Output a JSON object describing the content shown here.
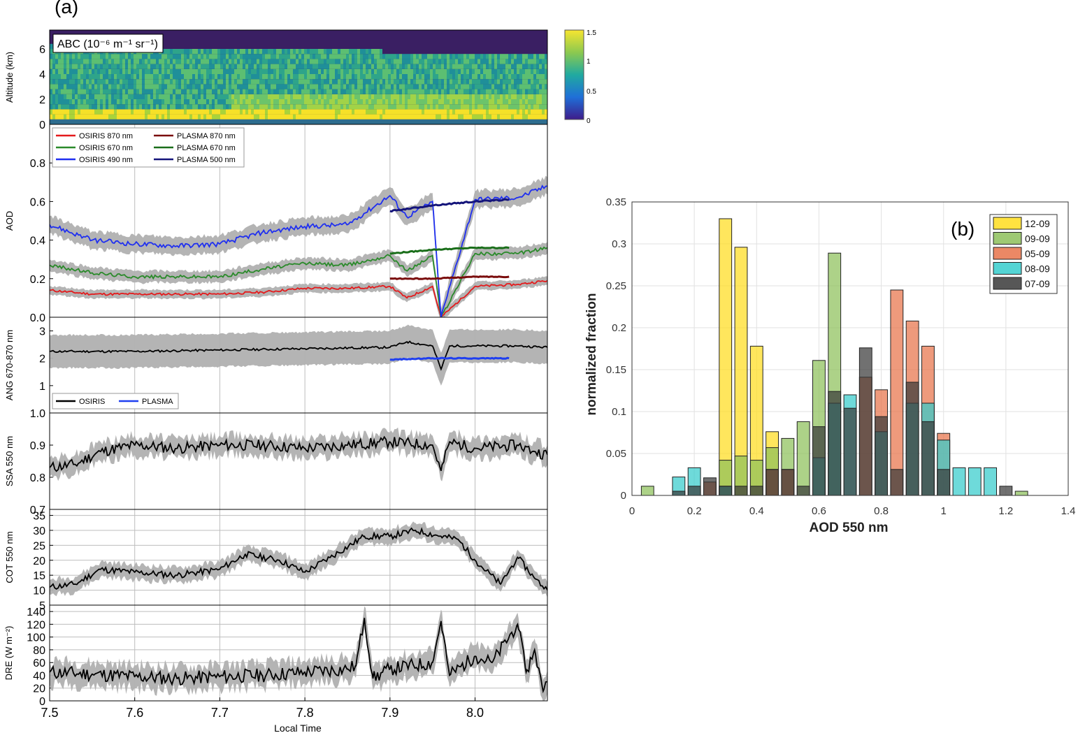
{
  "figure": {
    "panel_a_label": "(a)",
    "panel_b_label": "(b)",
    "colors": {
      "osiris_870": "#e41a1c",
      "osiris_670": "#2a8a2a",
      "osiris_490": "#1f2ff0",
      "plasma_870": "#7a0c0c",
      "plasma_670": "#1a6e1a",
      "plasma_500": "#14147a",
      "uncertainty": "#b0b0b0",
      "black_line": "#000000",
      "plasma_ang": "#1f3ff0"
    }
  },
  "chart_data": [
    {
      "id": "abc",
      "type": "heatmap",
      "ylabel": "Altitude (km)",
      "annotation": "ABC (10⁻⁶ m⁻¹ sr⁻¹)",
      "ylim": [
        0,
        7.5
      ],
      "yticks": [
        "0",
        "2",
        "4",
        "6"
      ],
      "xlim": [
        7.5,
        8.085
      ],
      "colorbar": {
        "min": 0,
        "max": 1.5,
        "ticks": [
          "1.5",
          "1",
          "0.5",
          "0"
        ]
      }
    },
    {
      "id": "aod",
      "type": "line",
      "ylabel": "AOD",
      "ylim": [
        0,
        1.0
      ],
      "yticks": [
        "0.0",
        "0.2",
        "0.4",
        "0.6",
        "0.8"
      ],
      "xlim": [
        7.5,
        8.085
      ],
      "legend_position": "top-left",
      "series": [
        {
          "name": "OSIRIS 870 nm",
          "color_key": "osiris_870",
          "band": 0.022,
          "x": [
            7.5,
            7.55,
            7.6,
            7.65,
            7.7,
            7.75,
            7.8,
            7.85,
            7.9,
            7.92,
            7.95,
            7.96,
            8.0,
            8.05,
            8.085
          ],
          "y": [
            0.14,
            0.12,
            0.12,
            0.12,
            0.12,
            0.13,
            0.15,
            0.15,
            0.16,
            0.1,
            0.16,
            0.0,
            0.16,
            0.17,
            0.19
          ]
        },
        {
          "name": "OSIRIS 670 nm",
          "color_key": "osiris_670",
          "band": 0.03,
          "x": [
            7.5,
            7.55,
            7.6,
            7.65,
            7.7,
            7.75,
            7.8,
            7.85,
            7.9,
            7.92,
            7.95,
            7.96,
            8.0,
            8.05,
            8.085
          ],
          "y": [
            0.27,
            0.23,
            0.21,
            0.21,
            0.21,
            0.25,
            0.28,
            0.27,
            0.32,
            0.24,
            0.32,
            0.0,
            0.33,
            0.33,
            0.36
          ]
        },
        {
          "name": "OSIRIS 490 nm",
          "color_key": "osiris_490",
          "band": 0.045,
          "x": [
            7.5,
            7.55,
            7.6,
            7.65,
            7.7,
            7.75,
            7.8,
            7.85,
            7.9,
            7.92,
            7.95,
            7.96,
            8.0,
            8.05,
            8.085
          ],
          "y": [
            0.48,
            0.4,
            0.38,
            0.37,
            0.38,
            0.44,
            0.47,
            0.48,
            0.63,
            0.52,
            0.6,
            0.0,
            0.61,
            0.62,
            0.68
          ]
        },
        {
          "name": "PLASMA 870 nm",
          "color_key": "plasma_870",
          "band": 0,
          "x": [
            7.9,
            7.95,
            8.0,
            8.04
          ],
          "y": [
            0.2,
            0.2,
            0.21,
            0.21
          ]
        },
        {
          "name": "PLASMA 670 nm",
          "color_key": "plasma_670",
          "band": 0,
          "x": [
            7.9,
            7.95,
            8.0,
            8.04
          ],
          "y": [
            0.33,
            0.35,
            0.36,
            0.36
          ]
        },
        {
          "name": "PLASMA 500 nm",
          "color_key": "plasma_500",
          "band": 0,
          "x": [
            7.9,
            7.95,
            8.0,
            8.04
          ],
          "y": [
            0.55,
            0.58,
            0.6,
            0.61
          ]
        }
      ]
    },
    {
      "id": "ang",
      "type": "line",
      "ylabel": "ANG 670-870 nm",
      "ylim": [
        0,
        3.5
      ],
      "yticks": [
        "1",
        "2",
        "3"
      ],
      "xlim": [
        7.5,
        8.085
      ],
      "legend_position": "bottom-left",
      "series": [
        {
          "name": "OSIRIS",
          "color_key": "black_line",
          "band": 0.6,
          "x": [
            7.5,
            7.6,
            7.7,
            7.8,
            7.9,
            7.92,
            7.95,
            7.96,
            7.97,
            8.0,
            8.05,
            8.085
          ],
          "y": [
            2.25,
            2.25,
            2.3,
            2.35,
            2.4,
            2.6,
            2.45,
            1.6,
            2.45,
            2.45,
            2.45,
            2.4
          ]
        },
        {
          "name": "PLASMA",
          "color_key": "plasma_ang",
          "band": 0,
          "x": [
            7.9,
            7.95,
            8.0,
            8.04
          ],
          "y": [
            1.95,
            2.0,
            2.0,
            2.0
          ]
        }
      ]
    },
    {
      "id": "ssa",
      "type": "line",
      "ylabel": "SSA 550 nm",
      "ylim": [
        0.7,
        1.0
      ],
      "yticks": [
        "0.7",
        "0.8",
        "0.9",
        "1.0"
      ],
      "xlim": [
        7.5,
        8.085
      ],
      "series": [
        {
          "name": "",
          "color_key": "black_line",
          "band": 0.03,
          "x": [
            7.5,
            7.53,
            7.56,
            7.6,
            7.65,
            7.7,
            7.75,
            7.8,
            7.85,
            7.9,
            7.95,
            7.96,
            7.97,
            8.0,
            8.05,
            8.07,
            8.085
          ],
          "y": [
            0.83,
            0.84,
            0.88,
            0.9,
            0.89,
            0.9,
            0.9,
            0.89,
            0.9,
            0.91,
            0.9,
            0.82,
            0.91,
            0.89,
            0.9,
            0.88,
            0.87
          ]
        }
      ]
    },
    {
      "id": "cot",
      "type": "line",
      "ylabel": "COT 550 nm",
      "ylim": [
        5,
        37
      ],
      "yticks": [
        "5",
        "10",
        "15",
        "20",
        "25",
        "30",
        "35"
      ],
      "xlim": [
        7.5,
        8.085
      ],
      "series": [
        {
          "name": "",
          "color_key": "black_line",
          "band": 2.5,
          "x": [
            7.5,
            7.53,
            7.56,
            7.6,
            7.65,
            7.7,
            7.73,
            7.77,
            7.8,
            7.83,
            7.87,
            7.9,
            7.93,
            7.96,
            7.98,
            8.0,
            8.03,
            8.05,
            8.07,
            8.085
          ],
          "y": [
            11,
            12,
            17,
            16,
            15,
            17,
            22,
            20,
            16,
            21,
            28,
            28,
            30,
            28,
            27,
            20,
            12,
            21,
            14,
            10
          ]
        }
      ]
    },
    {
      "id": "dre",
      "type": "line",
      "ylabel": "DRE (W m⁻²)",
      "ylim": [
        0,
        150
      ],
      "yticks": [
        "0",
        "20",
        "40",
        "60",
        "80",
        "100",
        "120",
        "140"
      ],
      "xlim": [
        7.5,
        8.085
      ],
      "xticks": [
        "7.5",
        "7.6",
        "7.7",
        "7.8",
        "7.9",
        "8.0"
      ],
      "xlabel": "Local Time",
      "series": [
        {
          "name": "",
          "color_key": "black_line",
          "band": 18,
          "x": [
            7.5,
            7.55,
            7.6,
            7.65,
            7.7,
            7.75,
            7.8,
            7.85,
            7.86,
            7.87,
            7.88,
            7.9,
            7.95,
            7.96,
            7.97,
            8.0,
            8.02,
            8.05,
            8.06,
            8.07,
            8.08,
            8.085
          ],
          "y": [
            45,
            42,
            38,
            35,
            38,
            40,
            45,
            50,
            55,
            130,
            35,
            50,
            60,
            125,
            40,
            70,
            60,
            120,
            45,
            80,
            15,
            30
          ]
        }
      ]
    },
    {
      "id": "histogram",
      "type": "bar",
      "xlabel": "AOD 550 nm",
      "ylabel": "normalized fraction",
      "xlim": [
        0,
        1.4
      ],
      "ylim": [
        0,
        0.35
      ],
      "xticks": [
        "0",
        "0.2",
        "0.4",
        "0.6",
        "0.8",
        "1",
        "1.2",
        "1.4"
      ],
      "yticks": [
        "0",
        "0.05",
        "0.1",
        "0.15",
        "0.2",
        "0.25",
        "0.3",
        "0.35"
      ],
      "grid": true,
      "legend_position": "top-right",
      "bin_width": 0.04,
      "series": [
        {
          "name": "12-09",
          "color": "#ffdd1f",
          "x": [
            0.3,
            0.35,
            0.4,
            0.45
          ],
          "values": [
            0.33,
            0.296,
            0.178,
            0.076
          ]
        },
        {
          "name": "09-09",
          "color": "#8dc05a",
          "x": [
            0.05,
            0.3,
            0.35,
            0.4,
            0.45,
            0.5,
            0.55,
            0.6,
            0.65,
            1.25
          ],
          "values": [
            0.011,
            0.042,
            0.047,
            0.042,
            0.057,
            0.068,
            0.088,
            0.161,
            0.289,
            0.005
          ]
        },
        {
          "name": "05-09",
          "color": "#e8734a",
          "x": [
            0.25,
            0.45,
            0.5,
            0.75,
            0.8,
            0.85,
            0.9,
            0.95,
            1.0
          ],
          "values": [
            0.016,
            0.031,
            0.031,
            0.141,
            0.126,
            0.245,
            0.208,
            0.178,
            0.074
          ]
        },
        {
          "name": "08-09",
          "color": "#36cccc",
          "x": [
            0.15,
            0.2,
            0.3,
            0.6,
            0.65,
            0.7,
            0.8,
            0.9,
            0.95,
            1.0,
            1.05,
            1.1,
            1.15
          ],
          "values": [
            0.022,
            0.033,
            0.011,
            0.045,
            0.11,
            0.12,
            0.076,
            0.11,
            0.11,
            0.066,
            0.033,
            0.033,
            0.033
          ]
        },
        {
          "name": "07-09",
          "color": "#3a3a3a",
          "x": [
            0.15,
            0.2,
            0.25,
            0.3,
            0.35,
            0.4,
            0.45,
            0.5,
            0.55,
            0.6,
            0.65,
            0.7,
            0.75,
            0.8,
            0.85,
            0.9,
            0.95,
            1.0,
            1.2
          ],
          "values": [
            0.005,
            0.011,
            0.021,
            0.011,
            0.011,
            0.011,
            0.031,
            0.031,
            0.011,
            0.082,
            0.124,
            0.104,
            0.176,
            0.094,
            0.031,
            0.135,
            0.088,
            0.031,
            0.011
          ]
        }
      ]
    }
  ]
}
